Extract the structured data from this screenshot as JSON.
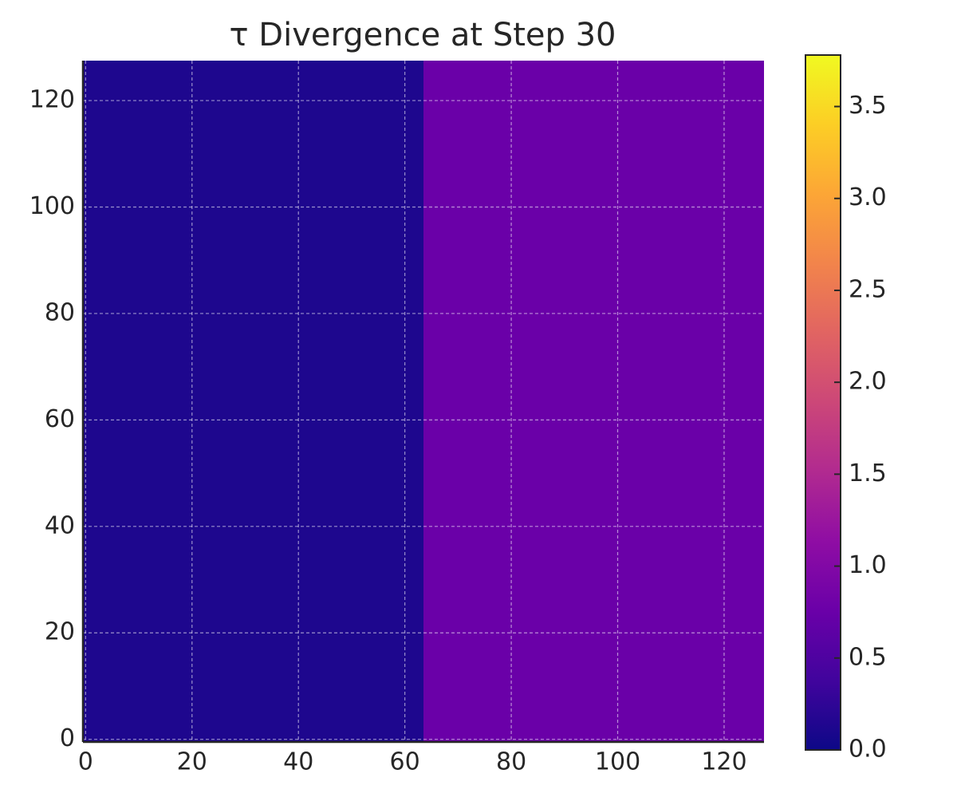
{
  "chart_data": {
    "type": "heatmap",
    "title": "τ Divergence at Step 30",
    "x_edges": [
      -0.5,
      63.5,
      127.5
    ],
    "y_edges": [
      -0.5,
      127.5
    ],
    "z": [
      [
        0.12,
        0.76
      ]
    ],
    "xlim": [
      -0.5,
      127.5
    ],
    "ylim": [
      -0.5,
      127.5
    ],
    "xticks": [
      0,
      20,
      40,
      60,
      80,
      100,
      120
    ],
    "yticks": [
      0,
      20,
      40,
      60,
      80,
      100,
      120
    ],
    "grid": true,
    "colormap": [
      "#0d0887",
      "#41049d",
      "#6a00a8",
      "#8f0da4",
      "#b12a90",
      "#cc4778",
      "#e16462",
      "#f2844b",
      "#fca636",
      "#fcce25",
      "#f0f921"
    ],
    "clim": [
      0,
      3.78
    ],
    "cticks": [
      {
        "value": 0,
        "label": "0.0"
      },
      0.5,
      {
        "value": 1,
        "label": "1.0"
      },
      1.5,
      {
        "value": 2,
        "label": "2.0"
      },
      2.5,
      {
        "value": 3,
        "label": "3.0"
      },
      3.5
    ]
  }
}
